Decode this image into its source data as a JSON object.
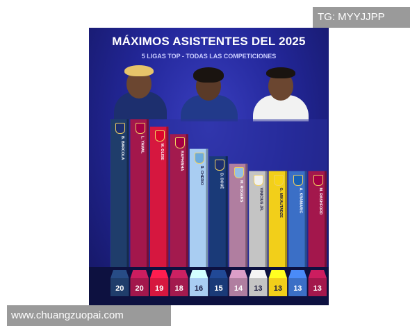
{
  "watermarks": {
    "top": "TG: MYYJJPP",
    "bottom": "www.chuangzuopai.com"
  },
  "chart_data": {
    "type": "bar",
    "title": "MÁXIMOS ASISTENTES DEL 2025",
    "subtitle": "5 LIGAS TOP - TODAS LAS COMPETICIONES",
    "categories": [
      "B. BARCOLA",
      "L. YAMAL",
      "M. OLISE",
      "RAPHINHA",
      "R. CHERKI",
      "D. DOUÉ",
      "M. ROGERS",
      "VINICIUS JR.",
      "G. MIKAUTADZE",
      "A. KRAMARIC",
      "M. RASHFORD"
    ],
    "values": [
      20,
      20,
      19,
      18,
      16,
      15,
      14,
      13,
      13,
      13,
      13
    ],
    "ylim": [
      0,
      20
    ],
    "colors": [
      "#1f3d6b",
      "#a3174c",
      "#d6173f",
      "#a31a4e",
      "#a9cdf2",
      "#1a3a78",
      "#b07ea0",
      "#c4c4c4",
      "#f2cf1a",
      "#3b6fc6",
      "#a3174c"
    ],
    "badges": [
      "#1d2f6e",
      "#a50044",
      "#dc052d",
      "#a50044",
      "#6cabdd",
      "#1d2f6e",
      "#95bfe5",
      "#f0f0f0",
      "#f7d417",
      "#1961b5",
      "#a50044"
    ],
    "grid": false,
    "legend": "none"
  }
}
